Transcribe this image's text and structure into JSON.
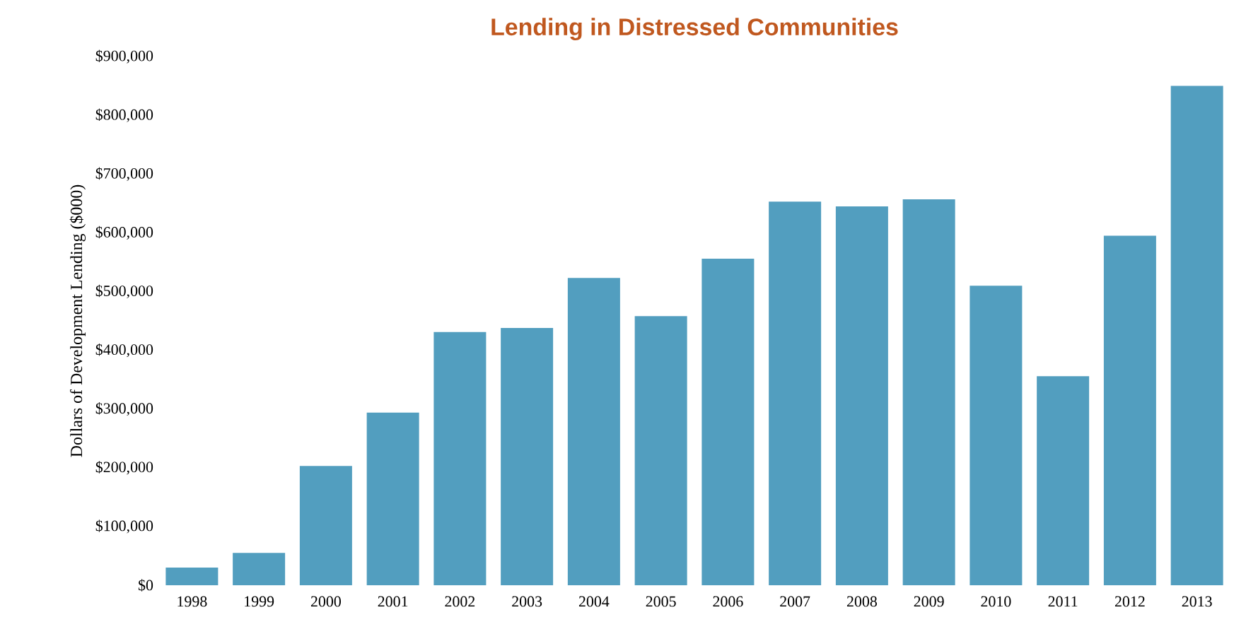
{
  "chart_data": {
    "type": "bar",
    "title": "Lending in Distressed Communities",
    "ylabel": "Dollars of Development Lending ($000)",
    "categories": [
      "1998",
      "1999",
      "2000",
      "2001",
      "2002",
      "2003",
      "2004",
      "2005",
      "2006",
      "2007",
      "2008",
      "2009",
      "2010",
      "2011",
      "2012",
      "2013"
    ],
    "values": [
      30000,
      55000,
      203000,
      294000,
      431000,
      438000,
      523000,
      458000,
      556000,
      653000,
      645000,
      657000,
      510000,
      356000,
      595000,
      850000
    ],
    "color": "#529ebf",
    "ylim": [
      0,
      900000
    ],
    "yticks": [
      {
        "value": 0,
        "label": "$0"
      },
      {
        "value": 100000,
        "label": "$100,000"
      },
      {
        "value": 200000,
        "label": "$200,000"
      },
      {
        "value": 300000,
        "label": "$300,000"
      },
      {
        "value": 400000,
        "label": "$400,000"
      },
      {
        "value": 500000,
        "label": "$500,000"
      },
      {
        "value": 600000,
        "label": "$600,000"
      },
      {
        "value": 700000,
        "label": "$700,000"
      },
      {
        "value": 800000,
        "label": "$800,000"
      },
      {
        "value": 900000,
        "label": "$900,000"
      }
    ],
    "grid": false
  }
}
